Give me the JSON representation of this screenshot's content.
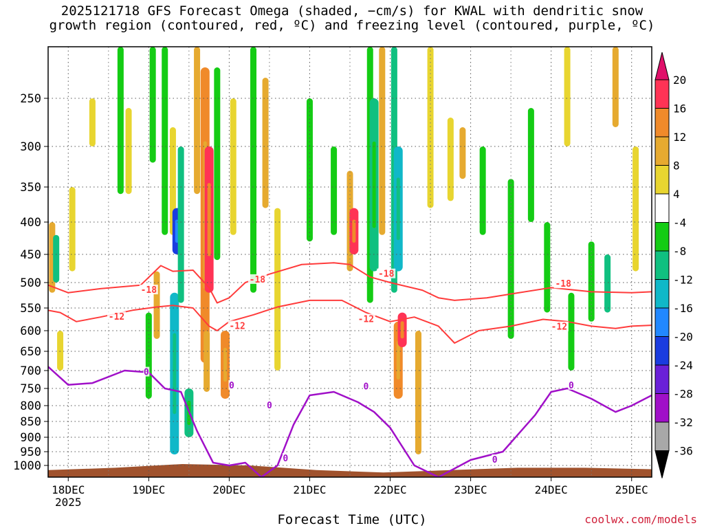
{
  "title": {
    "line1": "2025121718 GFS Forecast Omega (shaded, −cm/s) for KWAL with dendritic snow",
    "line2": "growth region (contoured, red, ºC) and freezing level (contoured, purple, ºC)"
  },
  "x_axis_title": "Forecast Time (UTC)",
  "credit": "coolwx.com/models",
  "chart_data": {
    "type": "heatmap",
    "title": "2025121718 GFS Forecast Omega (shaded, −cm/s) for KWAL with dendritic snow growth region (contoured, red, ºC) and freezing level (contoured, purple, ºC)",
    "xlabel": "Forecast Time (UTC)",
    "ylabel": "",
    "x_ticks": [
      "18DEC",
      "19DEC",
      "20DEC",
      "21DEC",
      "22DEC",
      "23DEC",
      "24DEC",
      "25DEC"
    ],
    "x_year_label": "2025",
    "x_range_days": [
      17.75,
      25.25
    ],
    "y_ticks": [
      250,
      300,
      350,
      400,
      450,
      500,
      550,
      600,
      650,
      700,
      750,
      800,
      850,
      900,
      950,
      1000
    ],
    "y_range_hPa": [
      200,
      1025
    ],
    "y_reversed": true,
    "grid": true,
    "colorbar": {
      "labels": [
        "20",
        "16",
        "12",
        "8",
        "4",
        "-4",
        "-8",
        "-12",
        "-16",
        "-20",
        "-24",
        "-28",
        "-32",
        "-36"
      ],
      "bands": [
        {
          "from": 16,
          "to": 20,
          "color": "#ff3355"
        },
        {
          "from": 12,
          "to": 16,
          "color": "#f08a2a"
        },
        {
          "from": 8,
          "to": 12,
          "color": "#e6aa30"
        },
        {
          "from": 4,
          "to": 8,
          "color": "#e8d530"
        },
        {
          "from": -4,
          "to": 4,
          "color": "#ffffff"
        },
        {
          "from": -8,
          "to": -4,
          "color": "#14cc14"
        },
        {
          "from": -12,
          "to": -8,
          "color": "#10c080"
        },
        {
          "from": -16,
          "to": -12,
          "color": "#10b8c8"
        },
        {
          "from": -20,
          "to": -16,
          "color": "#2288ff"
        },
        {
          "from": -24,
          "to": -20,
          "color": "#1a3ce0"
        },
        {
          "from": -28,
          "to": -24,
          "color": "#6a20d8"
        },
        {
          "from": -32,
          "to": -28,
          "color": "#a010c8"
        },
        {
          "from": -36,
          "to": -32,
          "color": "#a8a8a8"
        }
      ],
      "top_arrow_color": "#e0106a",
      "bottom_arrow_color": "#000000"
    },
    "omega_cells": [
      {
        "t": 17.8,
        "p": [
          400,
          520
        ],
        "v": 8
      },
      {
        "t": 17.85,
        "p": [
          420,
          500
        ],
        "v": -10
      },
      {
        "t": 17.9,
        "p": [
          600,
          700
        ],
        "v": 6
      },
      {
        "t": 18.05,
        "p": [
          350,
          480
        ],
        "v": 5
      },
      {
        "t": 18.3,
        "p": [
          250,
          300
        ],
        "v": 6
      },
      {
        "t": 18.65,
        "p": [
          200,
          360
        ],
        "v": -6
      },
      {
        "t": 18.75,
        "p": [
          260,
          360
        ],
        "v": 6
      },
      {
        "t": 19.0,
        "p": [
          560,
          780
        ],
        "v": -6
      },
      {
        "t": 19.05,
        "p": [
          200,
          320
        ],
        "v": -6
      },
      {
        "t": 19.1,
        "p": [
          480,
          620
        ],
        "v": 9
      },
      {
        "t": 19.2,
        "p": [
          200,
          420
        ],
        "v": -8
      },
      {
        "t": 19.3,
        "p": [
          280,
          420
        ],
        "v": 6
      },
      {
        "t": 19.32,
        "p": [
          520,
          960
        ],
        "v": -14
      },
      {
        "t": 19.35,
        "p": [
          380,
          450
        ],
        "v": -24
      },
      {
        "t": 19.4,
        "p": [
          300,
          540
        ],
        "v": -10
      },
      {
        "t": 19.5,
        "p": [
          750,
          900
        ],
        "v": -12
      },
      {
        "t": 19.6,
        "p": [
          200,
          360
        ],
        "v": 8
      },
      {
        "t": 19.7,
        "p": [
          220,
          680
        ],
        "v": 12
      },
      {
        "t": 19.75,
        "p": [
          300,
          520
        ],
        "v": 18
      },
      {
        "t": 19.72,
        "p": [
          600,
          760
        ],
        "v": 8
      },
      {
        "t": 19.95,
        "p": [
          600,
          780
        ],
        "v": 12
      },
      {
        "t": 19.85,
        "p": [
          220,
          460
        ],
        "v": -8
      },
      {
        "t": 20.05,
        "p": [
          250,
          420
        ],
        "v": 6
      },
      {
        "t": 20.3,
        "p": [
          200,
          520
        ],
        "v": -8
      },
      {
        "t": 20.45,
        "p": [
          230,
          380
        ],
        "v": 8
      },
      {
        "t": 20.6,
        "p": [
          380,
          700
        ],
        "v": 5
      },
      {
        "t": 21.0,
        "p": [
          250,
          430
        ],
        "v": -6
      },
      {
        "t": 21.3,
        "p": [
          300,
          420
        ],
        "v": -8
      },
      {
        "t": 21.5,
        "p": [
          330,
          480
        ],
        "v": 10
      },
      {
        "t": 21.55,
        "p": [
          380,
          450
        ],
        "v": 16
      },
      {
        "t": 21.75,
        "p": [
          200,
          540
        ],
        "v": -8
      },
      {
        "t": 21.8,
        "p": [
          250,
          480
        ],
        "v": -12
      },
      {
        "t": 21.9,
        "p": [
          200,
          420
        ],
        "v": 8
      },
      {
        "t": 22.05,
        "p": [
          200,
          520
        ],
        "v": -10
      },
      {
        "t": 22.1,
        "p": [
          300,
          480
        ],
        "v": -16
      },
      {
        "t": 22.1,
        "p": [
          580,
          780
        ],
        "v": 12
      },
      {
        "t": 22.15,
        "p": [
          560,
          640
        ],
        "v": 16
      },
      {
        "t": 22.35,
        "p": [
          600,
          960
        ],
        "v": 8
      },
      {
        "t": 22.5,
        "p": [
          200,
          380
        ],
        "v": 6
      },
      {
        "t": 22.75,
        "p": [
          270,
          370
        ],
        "v": 6
      },
      {
        "t": 22.9,
        "p": [
          280,
          340
        ],
        "v": 8
      },
      {
        "t": 23.15,
        "p": [
          300,
          420
        ],
        "v": -6
      },
      {
        "t": 23.5,
        "p": [
          340,
          620
        ],
        "v": -6
      },
      {
        "t": 23.75,
        "p": [
          260,
          400
        ],
        "v": -8
      },
      {
        "t": 23.95,
        "p": [
          400,
          560
        ],
        "v": -6
      },
      {
        "t": 24.2,
        "p": [
          200,
          300
        ],
        "v": 6
      },
      {
        "t": 24.25,
        "p": [
          520,
          700
        ],
        "v": -6
      },
      {
        "t": 24.5,
        "p": [
          430,
          580
        ],
        "v": -8
      },
      {
        "t": 24.7,
        "p": [
          450,
          560
        ],
        "v": -10
      },
      {
        "t": 24.8,
        "p": [
          200,
          280
        ],
        "v": 8
      },
      {
        "t": 25.05,
        "p": [
          300,
          480
        ],
        "v": 6
      }
    ],
    "contours": [
      {
        "name": "-18",
        "color": "#ff3b3b",
        "x": [
          17.75,
          18.0,
          18.4,
          18.9,
          19.15,
          19.3,
          19.55,
          19.75,
          19.85,
          20.0,
          20.2,
          20.5,
          20.9,
          21.3,
          21.5,
          21.75,
          22.0,
          22.4,
          22.6,
          22.8,
          23.2,
          23.6,
          24.0,
          24.5,
          25.0,
          25.25
        ],
        "p": [
          505,
          520,
          512,
          505,
          470,
          480,
          478,
          510,
          540,
          530,
          500,
          485,
          468,
          465,
          468,
          490,
          500,
          515,
          530,
          535,
          530,
          520,
          510,
          518,
          520,
          518
        ]
      },
      {
        "name": "-12",
        "color": "#ff3b3b",
        "x": [
          17.75,
          17.9,
          18.1,
          18.4,
          18.8,
          19.1,
          19.3,
          19.55,
          19.75,
          19.85,
          20.0,
          20.3,
          20.6,
          21.0,
          21.4,
          21.7,
          22.0,
          22.3,
          22.6,
          22.8,
          23.1,
          23.5,
          23.9,
          24.2,
          24.5,
          24.8,
          25.0,
          25.25
        ],
        "p": [
          555,
          560,
          580,
          570,
          555,
          548,
          545,
          550,
          590,
          600,
          580,
          565,
          548,
          535,
          535,
          560,
          580,
          570,
          590,
          630,
          600,
          590,
          575,
          580,
          590,
          595,
          590,
          588
        ]
      },
      {
        "name": "0",
        "color": "#a010c8",
        "x": [
          17.75,
          18.0,
          18.3,
          18.7,
          19.0,
          19.2,
          19.4,
          19.6,
          19.8,
          20.0,
          20.2,
          20.4,
          20.6,
          20.8,
          21.0,
          21.3,
          21.6,
          21.8,
          22.0,
          22.3,
          22.6,
          23.0,
          23.4,
          23.8,
          24.0,
          24.2,
          24.5,
          24.8,
          25.0,
          25.25
        ],
        "p": [
          690,
          740,
          735,
          700,
          705,
          750,
          760,
          880,
          990,
          1000,
          990,
          1025,
          1000,
          860,
          770,
          760,
          790,
          820,
          870,
          1000,
          1025,
          980,
          950,
          830,
          760,
          750,
          780,
          820,
          800,
          770
        ]
      }
    ],
    "contour_labels": [
      {
        "text": "-18",
        "t": 19.0,
        "p": 515,
        "color": "#ff3b3b"
      },
      {
        "text": "-18",
        "t": 20.35,
        "p": 495,
        "color": "#ff3b3b"
      },
      {
        "text": "-18",
        "t": 21.95,
        "p": 485,
        "color": "#ff3b3b"
      },
      {
        "text": "-18",
        "t": 24.15,
        "p": 503,
        "color": "#ff3b3b"
      },
      {
        "text": "-12",
        "t": 18.6,
        "p": 570,
        "color": "#ff3b3b"
      },
      {
        "text": "-12",
        "t": 20.1,
        "p": 590,
        "color": "#ff3b3b"
      },
      {
        "text": "-12",
        "t": 21.7,
        "p": 575,
        "color": "#ff3b3b"
      },
      {
        "text": "-12",
        "t": 24.1,
        "p": 592,
        "color": "#ff3b3b"
      },
      {
        "text": "0",
        "t": 18.97,
        "p": 705,
        "color": "#a010c8"
      },
      {
        "text": "0",
        "t": 20.03,
        "p": 742,
        "color": "#a010c8"
      },
      {
        "text": "0",
        "t": 20.5,
        "p": 800,
        "color": "#a010c8"
      },
      {
        "text": "0",
        "t": 20.7,
        "p": 975,
        "color": "#a010c8"
      },
      {
        "text": "0",
        "t": 21.7,
        "p": 745,
        "color": "#a010c8"
      },
      {
        "text": "0",
        "t": 23.3,
        "p": 980,
        "color": "#a010c8"
      },
      {
        "text": "0",
        "t": 24.25,
        "p": 742,
        "color": "#a010c8"
      }
    ],
    "terrain": {
      "color": "#a0522d",
      "p_top": [
        1010,
        1005,
        995,
        1000,
        1010,
        1015,
        1010,
        1005,
        1005,
        1008
      ]
    }
  }
}
